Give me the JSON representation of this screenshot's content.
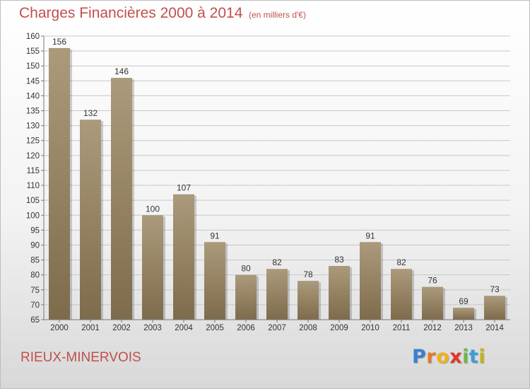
{
  "title": "Charges Financières 2000 à 2014",
  "subtitle": "(en milliers d'€)",
  "location": "RIEUX-MINERVOIS",
  "logo": {
    "letters": [
      "P",
      "r",
      "o",
      "x",
      "i",
      "t",
      "i"
    ],
    "colors": [
      "#3a7fd0",
      "#e07b2b",
      "#f0b21b",
      "#e0362b",
      "#6bb84a",
      "#3a9fd8",
      "#c0b21b"
    ]
  },
  "colors": {
    "bar_light": "#ab9a7b",
    "bar_dark": "#7e6b4c",
    "grid": "#c8c8c8",
    "text": "#c0504d"
  },
  "chart_data": {
    "type": "bar",
    "title": "Charges Financières 2000 à 2014",
    "subtitle": "(en milliers d'€)",
    "categories": [
      "2000",
      "2001",
      "2002",
      "2003",
      "2004",
      "2005",
      "2006",
      "2007",
      "2008",
      "2009",
      "2010",
      "2011",
      "2012",
      "2013",
      "2014"
    ],
    "values": [
      156,
      132,
      146,
      100,
      107,
      91,
      80,
      82,
      78,
      83,
      91,
      82,
      76,
      69,
      73
    ],
    "ylim": [
      65,
      160
    ],
    "yticks": [
      65,
      70,
      75,
      80,
      85,
      90,
      95,
      100,
      105,
      110,
      115,
      120,
      125,
      130,
      135,
      140,
      145,
      150,
      155,
      160
    ],
    "grid": true,
    "data_labels": true
  }
}
